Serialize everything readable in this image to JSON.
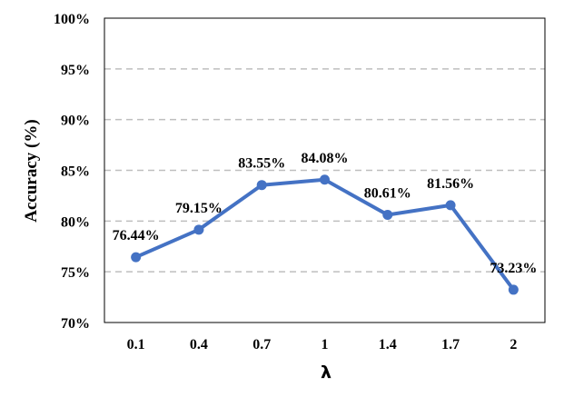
{
  "chart_data": {
    "type": "line",
    "categories": [
      "0.1",
      "0.4",
      "0.7",
      "1",
      "1.4",
      "1.7",
      "2"
    ],
    "series": [
      {
        "values": [
          76.44,
          79.15,
          83.55,
          84.08,
          80.61,
          81.56,
          73.23
        ],
        "labels": [
          "76.44%",
          "79.15%",
          "83.55%",
          "84.08%",
          "80.61%",
          "81.56%",
          "73.23%"
        ],
        "color": "#4472C4"
      }
    ],
    "ylim": [
      70,
      100
    ],
    "yticks": [
      70,
      75,
      80,
      85,
      90,
      95,
      100
    ],
    "ytick_labels": [
      "70%",
      "75%",
      "80%",
      "85%",
      "90%",
      "95%",
      "100%"
    ],
    "xlabel": "λ",
    "ylabel": "Accuracy (%)",
    "grid": true,
    "grid_style": "dashed",
    "grid_color": "#BFBFBF",
    "legend": "none"
  }
}
